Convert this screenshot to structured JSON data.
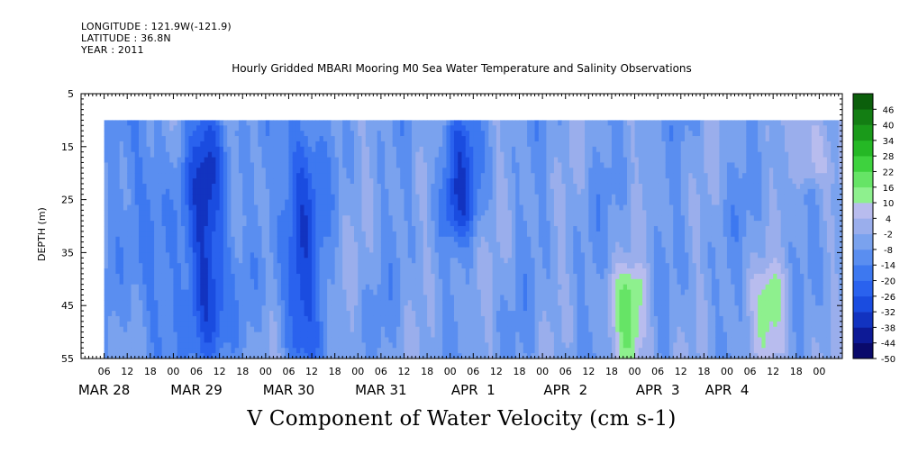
{
  "meta": {
    "longitude": "LONGITUDE : 121.9W(-121.9)",
    "latitude": "LATITUDE : 36.8N",
    "year": "YEAR : 2011"
  },
  "chart_data": {
    "type": "heatmap",
    "title": "Hourly Gridded MBARI Mooring M0 Sea Water Temperature and Salinity Observations",
    "xlabel": "V Component of Water Velocity (cm s-1)",
    "ylabel": "DEPTH (m)",
    "xlim_hours": [
      0,
      198
    ],
    "x_origin": "MAR 28 00:00",
    "data_x_range_hours": [
      6,
      198
    ],
    "ylim": [
      5,
      55
    ],
    "data_depth_range": [
      10,
      55
    ],
    "y_ticks": [
      5,
      15,
      25,
      35,
      45,
      55
    ],
    "x_hour_tick_labels": [
      "06",
      "12",
      "18",
      "00",
      "06",
      "12",
      "18",
      "00",
      "06",
      "12",
      "18",
      "00",
      "06",
      "12",
      "18",
      "00",
      "06",
      "12",
      "18",
      "00",
      "06",
      "12",
      "18",
      "00",
      "06",
      "12",
      "18",
      "00",
      "06",
      "12",
      "18",
      "00"
    ],
    "x_day_labels": [
      {
        "text": "MAR 28",
        "hour": 6
      },
      {
        "text": "MAR 29",
        "hour": 30
      },
      {
        "text": "MAR 30",
        "hour": 54
      },
      {
        "text": "MAR 31",
        "hour": 78
      },
      {
        "text": "APR  1",
        "hour": 102
      },
      {
        "text": "APR  2",
        "hour": 126
      },
      {
        "text": "APR  3",
        "hour": 150
      },
      {
        "text": "APR  4",
        "hour": 168
      }
    ],
    "colorbar": {
      "levels": [
        -50,
        -44,
        -38,
        -32,
        -26,
        -20,
        -14,
        -8,
        -2,
        4,
        10,
        16,
        22,
        28,
        34,
        40,
        46
      ],
      "labels": [
        "46",
        "40",
        "34",
        "28",
        "22",
        "16",
        "10",
        "4",
        "-2",
        "-8",
        "-14",
        "-20",
        "-26",
        "-32",
        "-38",
        "-44",
        "-50"
      ],
      "colors_low_to_high": [
        "#0a0a6b",
        "#0d1a96",
        "#1233c0",
        "#1a4ce0",
        "#2a62ee",
        "#3d78f0",
        "#5a8ef0",
        "#7aa2ee",
        "#9aaeec",
        "#b8bcee",
        "#8ef08e",
        "#66e466",
        "#3ed23e",
        "#25b825",
        "#1a9a1a",
        "#137e13",
        "#0b5f0b"
      ]
    },
    "field_description_v_cm_s": [
      {
        "hour": 18,
        "depth_range": [
          10,
          55
        ],
        "value": -18
      },
      {
        "hour": 33,
        "depth_range": [
          10,
          55
        ],
        "value": -36
      },
      {
        "hour": 57,
        "depth_range": [
          10,
          55
        ],
        "value": -30
      },
      {
        "hour": 98,
        "depth_range": [
          10,
          30
        ],
        "value": -28
      },
      {
        "hour": 143,
        "depth_range": [
          40,
          55
        ],
        "value": 16
      },
      {
        "hour": 180,
        "depth_range": [
          40,
          55
        ],
        "value": 12
      },
      {
        "hour": 190,
        "depth_range": [
          10,
          20
        ],
        "value": 10
      }
    ]
  }
}
